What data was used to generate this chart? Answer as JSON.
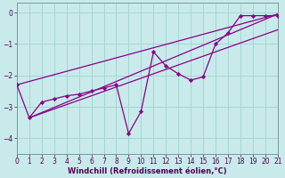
{
  "xlabel": "Windchill (Refroidissement éolien,°C)",
  "background_color": "#c8eaea",
  "grid_color": "#a8d4d4",
  "line_color": "#880088",
  "xlim": [
    0,
    21
  ],
  "ylim": [
    -4.5,
    0.3
  ],
  "yticks": [
    0,
    -1,
    -2,
    -3,
    -4
  ],
  "xticks": [
    0,
    1,
    2,
    3,
    4,
    5,
    6,
    7,
    8,
    9,
    10,
    11,
    12,
    13,
    14,
    15,
    16,
    17,
    18,
    19,
    20,
    21
  ],
  "data_x": [
    0,
    1,
    2,
    3,
    4,
    5,
    6,
    7,
    8,
    9,
    10,
    11,
    12,
    13,
    14,
    15,
    16,
    17,
    18,
    19,
    20,
    21
  ],
  "data_y": [
    -2.3,
    -3.35,
    -2.85,
    -2.75,
    -2.65,
    -2.6,
    -2.5,
    -2.4,
    -2.3,
    -3.85,
    -3.15,
    -1.25,
    -1.7,
    -1.95,
    -2.15,
    -2.05,
    -1.0,
    -0.65,
    -0.1,
    -0.1,
    -0.1,
    -0.1
  ],
  "trend1_x": [
    0,
    21
  ],
  "trend1_y": [
    -2.3,
    -0.05
  ],
  "trend2_x": [
    1,
    21
  ],
  "trend2_y": [
    -3.35,
    -0.05
  ],
  "trend3_x": [
    1,
    21
  ],
  "trend3_y": [
    -3.35,
    -0.5
  ],
  "trend4_x": [
    0,
    21
  ],
  "trend4_y": [
    -2.3,
    -0.15
  ]
}
